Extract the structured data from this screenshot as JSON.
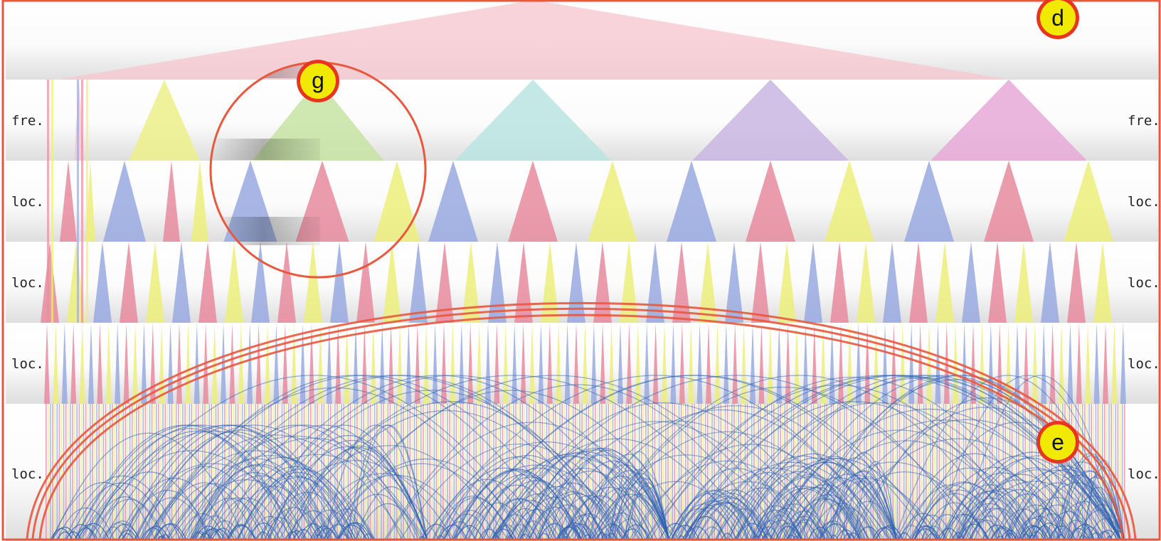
{
  "rows": [
    {
      "label_left": "",
      "label_right": ""
    },
    {
      "label_left": "fre.",
      "label_right": "fre."
    },
    {
      "label_left": "loc.",
      "label_right": "loc."
    },
    {
      "label_left": "loc.",
      "label_right": "loc."
    },
    {
      "label_left": "loc.",
      "label_right": "loc."
    },
    {
      "label_left": "loc.",
      "label_right": "loc."
    }
  ],
  "markers": [
    {
      "id": "d",
      "label": "d"
    },
    {
      "id": "g",
      "label": "g"
    },
    {
      "id": "e",
      "label": "e"
    }
  ],
  "colors": {
    "frame": "#e8583f",
    "marker_fill": "#f2e900",
    "marker_ring": "#e8351f",
    "root": "#f6c9d1",
    "yellow": "#ecf08a",
    "green": "#c7e3a2",
    "cyan": "#b8e4e0",
    "purple": "#c9b6e2",
    "pink": "#e7a9d8",
    "red": "#e88b9d",
    "yellow_leaf": "#ecef7a",
    "blue": "#98a9df",
    "arc": "#2f63b4",
    "lens": "#e8583f"
  }
}
